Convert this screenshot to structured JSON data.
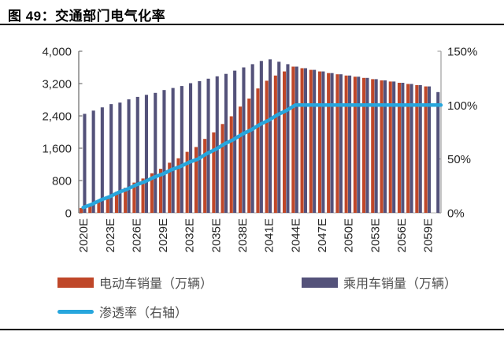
{
  "header": {
    "title": "图 49：交通部门电气化率"
  },
  "legend": {
    "items": [
      {
        "label": "电动车销量（万辆）",
        "color": "#bf4729",
        "type": "bar"
      },
      {
        "label": "乘用车销量（万辆）",
        "color": "#54527a",
        "type": "bar"
      },
      {
        "label": "渗透率（右轴）",
        "color": "#27a6dd",
        "type": "line"
      }
    ]
  },
  "chart_data": {
    "type": "bar+line",
    "title": "交通部门电气化率",
    "years": [
      2020,
      2021,
      2022,
      2023,
      2024,
      2025,
      2026,
      2027,
      2028,
      2029,
      2030,
      2031,
      2032,
      2033,
      2034,
      2035,
      2036,
      2037,
      2038,
      2039,
      2040,
      2041,
      2042,
      2043,
      2044,
      2045,
      2046,
      2047,
      2048,
      2049,
      2050,
      2051,
      2052,
      2053,
      2054,
      2055,
      2056,
      2057,
      2058,
      2059,
      2060
    ],
    "x_tick_labels": [
      "2020E",
      "2023E",
      "2026E",
      "2029E",
      "2032E",
      "2035E",
      "2038E",
      "2041E",
      "2044E",
      "2047E",
      "2050E",
      "2053E",
      "2056E",
      "2059E"
    ],
    "x_tick_step": 3,
    "left_axis": {
      "min": 0,
      "max": 4000,
      "tick_values": [
        0,
        800,
        1600,
        2400,
        3200,
        4000
      ],
      "tick_labels": [
        "0",
        "800",
        "1,600",
        "2,400",
        "3,200",
        "4,000"
      ]
    },
    "right_axis": {
      "min": 0,
      "max": 150,
      "tick_values": [
        0,
        50,
        100,
        150
      ],
      "tick_labels": [
        "0%",
        "50%",
        "100%",
        "150%"
      ]
    },
    "series": [
      {
        "name": "电动车销量（万辆）",
        "type": "bar",
        "axis": "left",
        "color": "#bf4729",
        "values": [
          120,
          200,
          310,
          400,
          520,
          620,
          750,
          850,
          980,
          1090,
          1240,
          1350,
          1510,
          1630,
          1830,
          1990,
          2200,
          2390,
          2630,
          2830,
          3080,
          3270,
          3400,
          3500,
          3620,
          3580,
          3540,
          3500,
          3460,
          3430,
          3400,
          3370,
          3340,
          3310,
          3280,
          3250,
          3220,
          3190,
          3160,
          3130,
          0
        ]
      },
      {
        "name": "乘用车销量（万辆）",
        "type": "bar",
        "axis": "left",
        "color": "#54527a",
        "values": [
          2450,
          2530,
          2610,
          2690,
          2730,
          2810,
          2870,
          2920,
          2970,
          3040,
          3090,
          3140,
          3210,
          3260,
          3320,
          3380,
          3440,
          3520,
          3600,
          3680,
          3760,
          3800,
          3740,
          3680,
          3620,
          3580,
          3540,
          3500,
          3460,
          3430,
          3400,
          3370,
          3340,
          3310,
          3280,
          3250,
          3220,
          3190,
          3160,
          3130,
          2990
        ]
      },
      {
        "name": "渗透率（右轴）",
        "type": "line",
        "axis": "right",
        "color": "#27a6dd",
        "values": [
          5,
          8,
          12,
          15,
          19,
          22,
          26,
          29,
          33,
          36,
          40,
          43,
          47,
          50,
          55,
          59,
          64,
          68,
          73,
          77,
          82,
          86,
          91,
          95,
          100,
          100,
          100,
          100,
          100,
          100,
          100,
          100,
          100,
          100,
          100,
          100,
          100,
          100,
          100,
          100,
          100
        ]
      }
    ],
    "colors": {
      "left_axis": "#737373",
      "right_axis": "#a6a6a6",
      "bottom_axis": "#bfbfbf"
    },
    "legend_position": "bottom",
    "grid": false
  }
}
